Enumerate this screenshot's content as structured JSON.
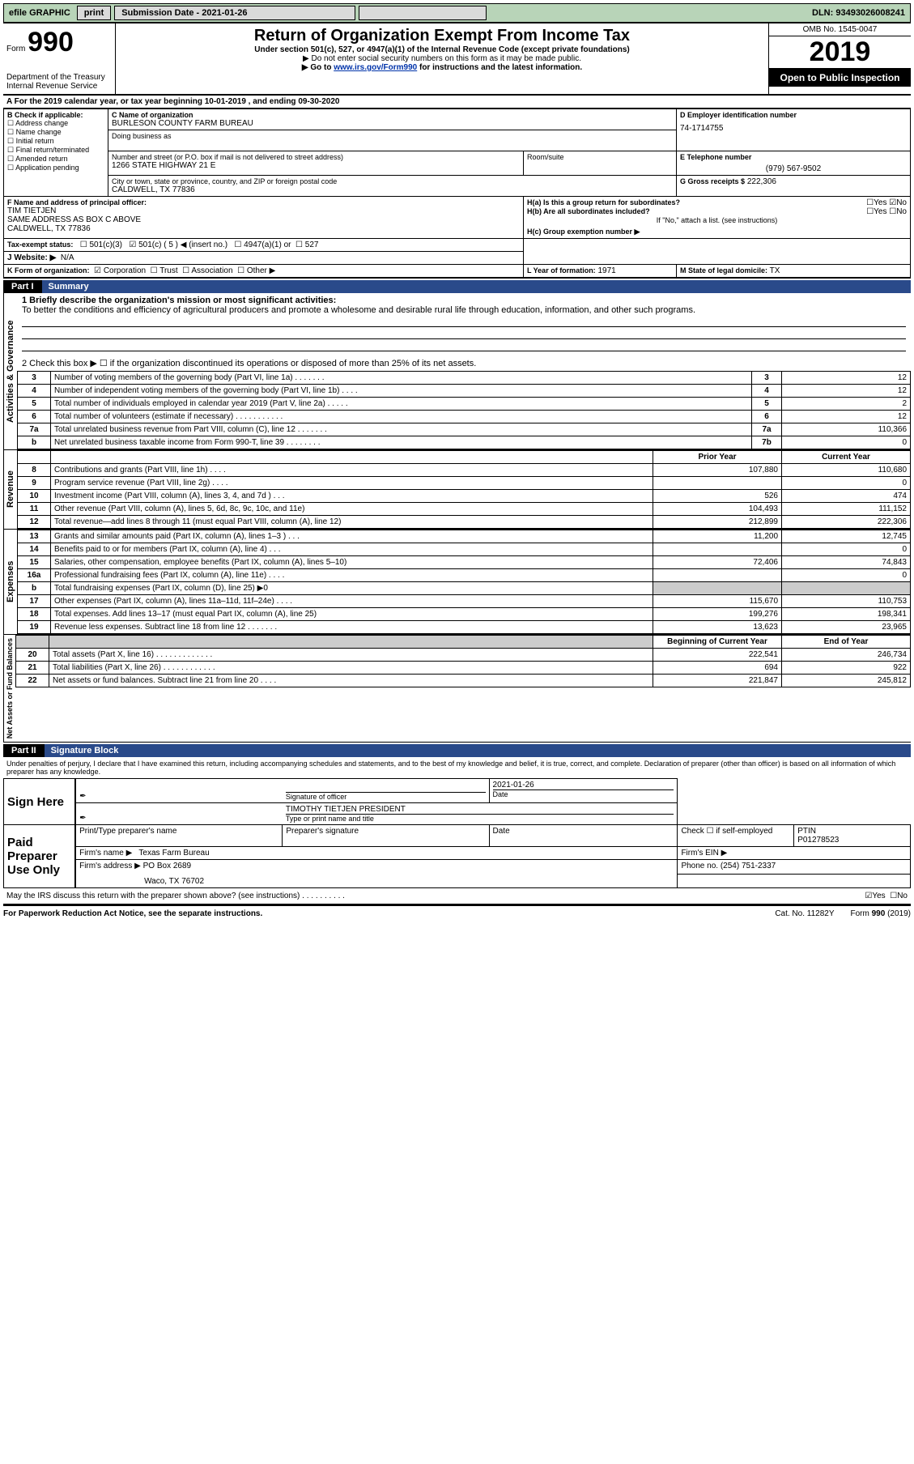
{
  "topbar": {
    "efile": "efile GRAPHIC",
    "print": "print",
    "sub_label": "Submission Date - 2021-01-26",
    "dln": "DLN: 93493026008241"
  },
  "header": {
    "form_word": "Form",
    "form_no": "990",
    "dept": "Department of the Treasury",
    "irs": "Internal Revenue Service",
    "title": "Return of Organization Exempt From Income Tax",
    "sub1": "Under section 501(c), 527, or 4947(a)(1) of the Internal Revenue Code (except private foundations)",
    "sub2": "▶ Do not enter social security numbers on this form as it may be made public.",
    "sub3_pre": "▶ Go to ",
    "sub3_link": "www.irs.gov/Form990",
    "sub3_post": " for instructions and the latest information.",
    "omb": "OMB No. 1545-0047",
    "year": "2019",
    "inspect": "Open to Public Inspection"
  },
  "rowA": "A For the 2019 calendar year, or tax year beginning 10-01-2019    , and ending 09-30-2020",
  "boxB": {
    "title": "B Check if applicable:",
    "items": [
      "Address change",
      "Name change",
      "Initial return",
      "Final return/terminated",
      "Amended return",
      "Application pending"
    ]
  },
  "boxC": {
    "label_name": "C Name of organization",
    "org": "BURLESON COUNTY FARM BUREAU",
    "dba_label": "Doing business as",
    "addr_label": "Number and street (or P.O. box if mail is not delivered to street address)",
    "room_label": "Room/suite",
    "addr": "1266 STATE HIGHWAY 21 E",
    "city_label": "City or town, state or province, country, and ZIP or foreign postal code",
    "city": "CALDWELL, TX  77836"
  },
  "boxD": {
    "label": "D Employer identification number",
    "val": "74-1714755"
  },
  "boxE": {
    "label": "E Telephone number",
    "val": "(979) 567-9502"
  },
  "boxG": {
    "label": "G Gross receipts $",
    "val": "222,306"
  },
  "boxF": {
    "label": "F  Name and address of principal officer:",
    "name": "TIM TIETJEN",
    "addr1": "SAME ADDRESS AS BOX C ABOVE",
    "addr2": "CALDWELL, TX  77836"
  },
  "boxH": {
    "a_label": "H(a)  Is this a group return for subordinates?",
    "a_yes": "Yes",
    "a_no": "No",
    "b_label": "H(b)  Are all subordinates included?",
    "b_note": "If \"No,\" attach a list. (see instructions)",
    "c_label": "H(c)  Group exemption number ▶"
  },
  "boxI": {
    "label": "Tax-exempt status:",
    "o1": "501(c)(3)",
    "o2": "501(c) ( 5 ) ◀ (insert no.)",
    "o3": "4947(a)(1) or",
    "o4": "527"
  },
  "boxJ": {
    "label": "J   Website: ▶",
    "val": "N/A"
  },
  "boxK": {
    "label": "K Form of organization:",
    "o1": "Corporation",
    "o2": "Trust",
    "o3": "Association",
    "o4": "Other ▶"
  },
  "boxL": {
    "label": "L Year of formation:",
    "val": "1971"
  },
  "boxM": {
    "label": "M State of legal domicile:",
    "val": "TX"
  },
  "part1": {
    "num": "Part I",
    "title": "Summary"
  },
  "sidebars": {
    "ag": "Activities & Governance",
    "rev": "Revenue",
    "exp": "Expenses",
    "na": "Net Assets or Fund Balances"
  },
  "s1": {
    "l1_label": "1  Briefly describe the organization's mission or most significant activities:",
    "l1_text": "To better the conditions and efficiency of agricultural producers and promote a wholesome and desirable rural life through education, information, and other such programs.",
    "l2": "2   Check this box ▶ ☐  if the organization discontinued its operations or disposed of more than 25% of its net assets.",
    "rows_ag": [
      {
        "n": "3",
        "t": "Number of voting members of the governing body (Part VI, line 1a)   .    .    .    .    .    .    .",
        "box": "3",
        "v": "12"
      },
      {
        "n": "4",
        "t": "Number of independent voting members of the governing body (Part VI, line 1b)   .    .    .    .",
        "box": "4",
        "v": "12"
      },
      {
        "n": "5",
        "t": "Total number of individuals employed in calendar year 2019 (Part V, line 2a)   .    .    .    .    .",
        "box": "5",
        "v": "2"
      },
      {
        "n": "6",
        "t": "Total number of volunteers (estimate if necessary)    .    .    .    .    .    .    .    .    .    .    .",
        "box": "6",
        "v": "12"
      },
      {
        "n": "7a",
        "t": "Total unrelated business revenue from Part VIII, column (C), line 12   .    .    .    .    .    .    .",
        "box": "7a",
        "v": "110,366"
      },
      {
        "n": "  b",
        "t": "Net unrelated business taxable income from Form 990-T, line 39    .    .    .    .    .    .    .    .",
        "box": "7b",
        "v": "0"
      }
    ],
    "py": "Prior Year",
    "cy": "Current Year",
    "rows_rev": [
      {
        "n": "8",
        "t": "Contributions and grants (Part VIII, line 1h)   .    .    .    .",
        "py": "107,880",
        "cy": "110,680"
      },
      {
        "n": "9",
        "t": "Program service revenue (Part VIII, line 2g)   .    .    .    .",
        "py": "",
        "cy": "0"
      },
      {
        "n": "10",
        "t": "Investment income (Part VIII, column (A), lines 3, 4, and 7d )    .    .    .",
        "py": "526",
        "cy": "474"
      },
      {
        "n": "11",
        "t": "Other revenue (Part VIII, column (A), lines 5, 6d, 8c, 9c, 10c, and 11e)",
        "py": "104,493",
        "cy": "111,152"
      },
      {
        "n": "12",
        "t": "Total revenue—add lines 8 through 11 (must equal Part VIII, column (A), line 12)",
        "py": "212,899",
        "cy": "222,306"
      }
    ],
    "rows_exp": [
      {
        "n": "13",
        "t": "Grants and similar amounts paid (Part IX, column (A), lines 1–3 )   .    .    .",
        "py": "11,200",
        "cy": "12,745"
      },
      {
        "n": "14",
        "t": "Benefits paid to or for members (Part IX, column (A), line 4)   .    .    .",
        "py": "",
        "cy": "0"
      },
      {
        "n": "15",
        "t": "Salaries, other compensation, employee benefits (Part IX, column (A), lines 5–10)",
        "py": "72,406",
        "cy": "74,843"
      },
      {
        "n": "16a",
        "t": "Professional fundraising fees (Part IX, column (A), line 11e)   .    .    .    .",
        "py": "",
        "cy": "0"
      },
      {
        "n": "  b",
        "t": "Total fundraising expenses (Part IX, column (D), line 25) ▶0",
        "grey": true
      },
      {
        "n": "17",
        "t": "Other expenses (Part IX, column (A), lines 11a–11d, 11f–24e)   .    .    .    .",
        "py": "115,670",
        "cy": "110,753"
      },
      {
        "n": "18",
        "t": "Total expenses. Add lines 13–17 (must equal Part IX, column (A), line 25)",
        "py": "199,276",
        "cy": "198,341"
      },
      {
        "n": "19",
        "t": "Revenue less expenses. Subtract line 18 from line 12   .    .    .    .    .    .    .",
        "py": "13,623",
        "cy": "23,965"
      }
    ],
    "by": "Beginning of Current Year",
    "ey": "End of Year",
    "rows_na": [
      {
        "n": "20",
        "t": "Total assets (Part X, line 16)   .    .    .    .    .    .    .    .    .    .    .    .    .",
        "py": "222,541",
        "cy": "246,734"
      },
      {
        "n": "21",
        "t": "Total liabilities (Part X, line 26)   .    .    .    .    .    .    .    .    .    .    .    .",
        "py": "694",
        "cy": "922"
      },
      {
        "n": "22",
        "t": "Net assets or fund balances. Subtract line 21 from line 20    .    .    .    .",
        "py": "221,847",
        "cy": "245,812"
      }
    ]
  },
  "part2": {
    "num": "Part II",
    "title": "Signature Block"
  },
  "sig": {
    "declaration": "Under penalties of perjury, I declare that I have examined this return, including accompanying schedules and statements, and to the best of my knowledge and belief, it is true, correct, and complete. Declaration of preparer (other than officer) is based on all information of which preparer has any knowledge.",
    "sign_here": "Sign Here",
    "sig_label": "Signature of officer",
    "date_label": "Date",
    "date_val": "2021-01-26",
    "name_line": "TIMOTHY TIETJEN  PRESIDENT",
    "name_label": "Type or print name and title",
    "paid": "Paid Preparer Use Only",
    "p_name_label": "Print/Type preparer's name",
    "p_sig_label": "Preparer's signature",
    "p_date_label": "Date",
    "p_check": "Check ☐  if self-employed",
    "ptin_label": "PTIN",
    "ptin": "P01278523",
    "firm_name_label": "Firm's name   ▶",
    "firm_name": "Texas Farm Bureau",
    "firm_ein_label": "Firm's EIN ▶",
    "firm_addr_label": "Firm's address ▶",
    "firm_addr1": "PO Box 2689",
    "firm_addr2": "Waco, TX  76702",
    "phone_label": "Phone no.",
    "phone": "(254) 751-2337",
    "discuss": "May the IRS discuss this return with the preparer shown above? (see instructions)    .    .    .    .    .    .    .    .    .    .",
    "discuss_yes": "Yes",
    "discuss_no": "No"
  },
  "footer": {
    "left": "For Paperwork Reduction Act Notice, see the separate instructions.",
    "mid": "Cat. No. 11282Y",
    "right": "Form 990 (2019)"
  }
}
